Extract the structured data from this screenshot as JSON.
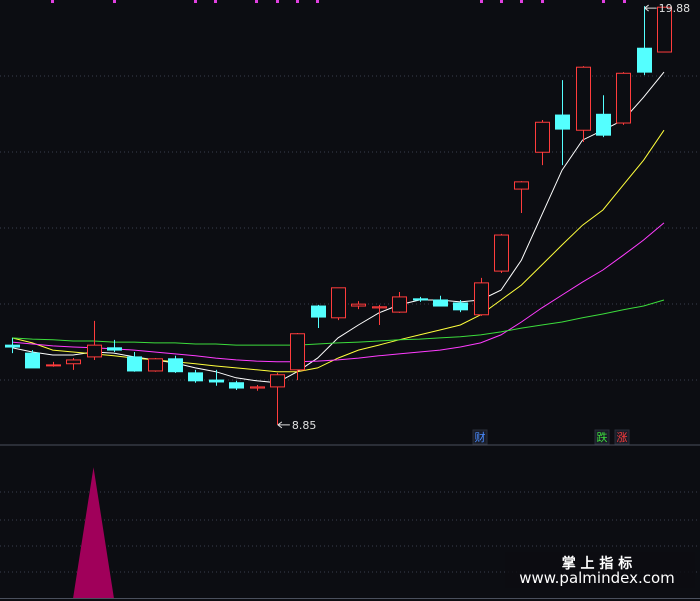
{
  "chart_data": [
    {
      "type": "candlestick",
      "ylim": [
        8.32,
        20.04
      ],
      "up_color": "#ff3c3c",
      "down_color": "#54ffff",
      "ohlc": {
        "open": [
          10.95,
          10.74,
          10.43,
          10.46,
          10.64,
          10.88,
          10.64,
          10.27,
          10.59,
          10.22,
          10.03,
          9.96,
          9.82,
          9.85,
          10.3,
          11.98,
          11.67,
          11.98,
          11.93,
          11.82,
          12.17,
          12.14,
          12.06,
          11.75,
          12.9,
          15.06,
          16.03,
          17.01,
          16.61,
          17.03,
          16.8,
          18.77,
          18.67
        ],
        "high": [
          11.14,
          10.82,
          10.51,
          10.61,
          11.59,
          11.09,
          10.77,
          10.61,
          10.67,
          10.3,
          10.3,
          10.01,
          9.9,
          10.22,
          11.27,
          12.01,
          12.46,
          12.11,
          12.01,
          12.35,
          12.22,
          12.25,
          12.14,
          12.72,
          13.88,
          15.27,
          16.88,
          17.93,
          18.3,
          17.53,
          18.14,
          19.88,
          19.86
        ],
        "low": [
          10.74,
          10.35,
          10.38,
          10.3,
          10.56,
          10.77,
          10.25,
          10.25,
          10.22,
          9.96,
          9.88,
          9.77,
          9.75,
          8.85,
          10.03,
          11.4,
          11.61,
          11.9,
          11.48,
          11.8,
          12.09,
          11.98,
          11.82,
          11.72,
          12.85,
          14.43,
          15.69,
          15.69,
          16.3,
          16.43,
          16.75,
          18.06,
          18.67
        ],
        "close": [
          10.9,
          10.35,
          10.43,
          10.56,
          10.95,
          10.82,
          10.27,
          10.59,
          10.25,
          10.01,
          9.98,
          9.82,
          9.85,
          10.17,
          11.25,
          11.69,
          12.46,
          12.03,
          11.96,
          12.22,
          12.14,
          11.98,
          11.88,
          12.59,
          13.85,
          15.25,
          16.82,
          16.64,
          18.27,
          16.48,
          18.11,
          18.14,
          19.85
        ]
      },
      "series": [
        {
          "color": "#ffffff",
          "values": [
            10.88,
            10.77,
            10.69,
            10.69,
            10.77,
            10.74,
            10.64,
            10.56,
            10.48,
            10.35,
            10.25,
            10.09,
            10.01,
            9.96,
            10.25,
            10.61,
            11.14,
            11.48,
            11.8,
            12.01,
            12.14,
            12.14,
            12.09,
            12.14,
            12.4,
            13.19,
            14.38,
            15.56,
            16.35,
            16.61,
            16.88,
            17.48,
            18.14
          ]
        },
        {
          "color": "#ffff3c",
          "values": [
            11.14,
            11.01,
            10.82,
            10.77,
            10.72,
            10.67,
            10.61,
            10.56,
            10.51,
            10.46,
            10.4,
            10.35,
            10.3,
            10.25,
            10.25,
            10.35,
            10.61,
            10.82,
            10.95,
            11.09,
            11.22,
            11.35,
            11.48,
            11.75,
            12.14,
            12.53,
            13.06,
            13.59,
            14.11,
            14.51,
            15.17,
            15.82,
            16.61
          ]
        },
        {
          "color": "#ff3cff",
          "values": [
            11.03,
            10.98,
            10.93,
            10.9,
            10.88,
            10.85,
            10.82,
            10.77,
            10.72,
            10.67,
            10.61,
            10.56,
            10.53,
            10.51,
            10.51,
            10.53,
            10.56,
            10.61,
            10.67,
            10.72,
            10.77,
            10.82,
            10.9,
            11.01,
            11.22,
            11.56,
            11.93,
            12.27,
            12.61,
            12.93,
            13.32,
            13.72,
            14.17
          ]
        },
        {
          "color": "#3cdc3c",
          "values": [
            11.14,
            11.11,
            11.09,
            11.06,
            11.06,
            11.03,
            11.03,
            11.01,
            11.01,
            10.98,
            10.98,
            10.95,
            10.95,
            10.95,
            10.95,
            10.98,
            11.01,
            11.03,
            11.06,
            11.09,
            11.11,
            11.14,
            11.17,
            11.22,
            11.3,
            11.4,
            11.48,
            11.56,
            11.67,
            11.77,
            11.88,
            11.98,
            12.14
          ]
        }
      ],
      "max_price": 19.88,
      "min_price": 8.85,
      "event_markers": [
        {
          "text": "财",
          "color": "#4a8cff"
        },
        {
          "text": "跌",
          "color": "#3cdc3c"
        },
        {
          "text": "涨",
          "color": "#ff3c3c"
        }
      ],
      "watermark": [
        "掌 上 指 标",
        "www.palmindex.com"
      ]
    },
    {
      "type": "area",
      "ylim": [
        0,
        1.17
      ],
      "color": "#a0005a",
      "values": [
        0,
        0,
        0,
        0,
        1,
        0,
        0,
        0,
        0,
        0,
        0,
        0,
        0,
        0,
        0,
        0,
        0,
        0,
        0,
        0,
        0,
        0,
        0,
        0,
        0,
        0,
        0,
        0,
        0,
        0,
        0,
        0,
        0
      ]
    }
  ]
}
